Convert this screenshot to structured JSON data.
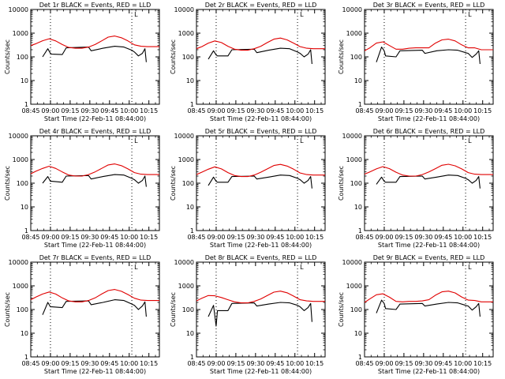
{
  "common": {
    "xlabel": "Start Time (22-Feb-11 08:44:00)",
    "ylabel": "Counts/sec",
    "ytick_labels": [
      "1",
      "10",
      "100",
      "1000",
      "10000"
    ],
    "xtick_labels": [
      "08:45",
      "09:00",
      "09:15",
      "09:30",
      "09:45",
      "10:00",
      "10:15"
    ],
    "x_unit": "minutes after 08:44:00",
    "xtick_values": [
      1,
      16,
      31,
      46,
      61,
      76,
      91
    ],
    "xlim": [
      1,
      99
    ],
    "ylim": [
      1,
      10000
    ],
    "yscale": "log",
    "grid": false,
    "marker_lines_x": [
      16,
      78
    ],
    "marker_glyph": "L",
    "colors": {
      "events": "#000000",
      "lld": "#e00000",
      "axes": "#000000",
      "background": "#ffffff"
    }
  },
  "chart_data": [
    {
      "type": "line",
      "title": "Det 1r BLACK = Events, RED = LLD",
      "series": [
        {
          "name": "Events",
          "color": "#000000",
          "x": [
            10,
            14,
            16,
            17,
            25,
            28,
            45,
            47,
            56,
            65,
            72,
            78,
            80,
            83,
            86,
            88,
            89
          ],
          "y": [
            100,
            220,
            140,
            130,
            125,
            240,
            260,
            180,
            230,
            280,
            260,
            190,
            160,
            110,
            140,
            220,
            60
          ]
        },
        {
          "name": "LLD",
          "color": "#e00000",
          "x": [
            1,
            5,
            10,
            15,
            20,
            25,
            30,
            35,
            40,
            45,
            50,
            55,
            60,
            65,
            70,
            75,
            80,
            85,
            90,
            95,
            99
          ],
          "y": [
            300,
            360,
            480,
            580,
            470,
            330,
            250,
            230,
            230,
            260,
            330,
            470,
            680,
            760,
            640,
            470,
            320,
            280,
            270,
            270,
            270
          ]
        }
      ]
    },
    {
      "type": "line",
      "title": "Det 2r BLACK = Events, RED = LLD",
      "series": [
        {
          "name": "Events",
          "color": "#000000",
          "x": [
            10,
            14,
            16,
            17,
            25,
            28,
            45,
            47,
            56,
            65,
            72,
            78,
            80,
            83,
            86,
            88,
            89
          ],
          "y": [
            80,
            180,
            120,
            110,
            110,
            200,
            210,
            150,
            190,
            230,
            220,
            160,
            140,
            100,
            130,
            200,
            50
          ]
        },
        {
          "name": "LLD",
          "color": "#e00000",
          "x": [
            1,
            5,
            10,
            15,
            20,
            25,
            30,
            35,
            40,
            45,
            50,
            55,
            60,
            65,
            70,
            75,
            80,
            85,
            90,
            95,
            99
          ],
          "y": [
            220,
            270,
            380,
            470,
            400,
            280,
            210,
            190,
            190,
            220,
            280,
            400,
            560,
            620,
            520,
            380,
            270,
            230,
            220,
            220,
            220
          ]
        }
      ]
    },
    {
      "type": "line",
      "title": "Det 3r BLACK = Events, RED = LLD",
      "series": [
        {
          "name": "Events",
          "color": "#000000",
          "x": [
            10,
            14,
            16,
            17,
            25,
            28,
            45,
            47,
            56,
            65,
            72,
            78,
            80,
            83,
            86,
            88,
            89
          ],
          "y": [
            60,
            260,
            180,
            110,
            100,
            180,
            190,
            140,
            180,
            200,
            190,
            150,
            140,
            95,
            130,
            180,
            50
          ]
        },
        {
          "name": "LLD",
          "color": "#e00000",
          "x": [
            1,
            5,
            10,
            15,
            20,
            25,
            30,
            35,
            40,
            45,
            50,
            55,
            60,
            65,
            70,
            75,
            80,
            85,
            90,
            95,
            99
          ],
          "y": [
            180,
            240,
            380,
            430,
            300,
            210,
            210,
            230,
            240,
            240,
            240,
            380,
            520,
            560,
            470,
            320,
            240,
            240,
            200,
            200,
            200
          ]
        }
      ]
    },
    {
      "type": "line",
      "title": "Det 4r BLACK = Events, RED = LLD",
      "series": [
        {
          "name": "Events",
          "color": "#000000",
          "x": [
            10,
            14,
            16,
            17,
            25,
            28,
            45,
            47,
            56,
            65,
            72,
            78,
            80,
            83,
            86,
            88,
            89
          ],
          "y": [
            100,
            190,
            120,
            120,
            110,
            200,
            210,
            150,
            190,
            230,
            220,
            160,
            140,
            100,
            130,
            200,
            70
          ]
        },
        {
          "name": "LLD",
          "color": "#e00000",
          "x": [
            1,
            5,
            10,
            15,
            20,
            25,
            30,
            35,
            40,
            45,
            50,
            55,
            60,
            65,
            70,
            75,
            80,
            85,
            90,
            95,
            99
          ],
          "y": [
            250,
            320,
            420,
            520,
            420,
            300,
            220,
            200,
            200,
            230,
            300,
            420,
            590,
            650,
            550,
            400,
            280,
            240,
            230,
            230,
            230
          ]
        }
      ]
    },
    {
      "type": "line",
      "title": "Det 5r BLACK = Events, RED = LLD",
      "series": [
        {
          "name": "Events",
          "color": "#000000",
          "x": [
            10,
            14,
            16,
            17,
            25,
            28,
            45,
            47,
            56,
            65,
            72,
            78,
            80,
            83,
            86,
            88,
            89
          ],
          "y": [
            80,
            180,
            120,
            110,
            110,
            190,
            200,
            150,
            180,
            220,
            210,
            160,
            140,
            100,
            130,
            190,
            60
          ]
        },
        {
          "name": "LLD",
          "color": "#e00000",
          "x": [
            1,
            5,
            10,
            15,
            20,
            25,
            30,
            35,
            40,
            45,
            50,
            55,
            60,
            65,
            70,
            75,
            80,
            85,
            90,
            95,
            99
          ],
          "y": [
            230,
            290,
            390,
            490,
            400,
            280,
            210,
            190,
            190,
            220,
            290,
            400,
            560,
            620,
            530,
            390,
            270,
            230,
            220,
            220,
            220
          ]
        }
      ]
    },
    {
      "type": "line",
      "title": "Det 6r BLACK = Events, RED = LLD",
      "series": [
        {
          "name": "Events",
          "color": "#000000",
          "x": [
            10,
            14,
            16,
            17,
            25,
            28,
            45,
            47,
            56,
            65,
            72,
            78,
            80,
            83,
            86,
            88,
            89
          ],
          "y": [
            90,
            180,
            120,
            110,
            110,
            190,
            200,
            150,
            180,
            220,
            210,
            160,
            140,
            100,
            130,
            190,
            60
          ]
        },
        {
          "name": "LLD",
          "color": "#e00000",
          "x": [
            1,
            5,
            10,
            15,
            20,
            25,
            30,
            35,
            40,
            45,
            50,
            55,
            60,
            65,
            70,
            75,
            80,
            85,
            90,
            95,
            99
          ],
          "y": [
            240,
            300,
            400,
            500,
            410,
            290,
            220,
            200,
            200,
            230,
            300,
            410,
            570,
            630,
            540,
            400,
            280,
            240,
            230,
            230,
            230
          ]
        }
      ]
    },
    {
      "type": "line",
      "title": "Det 7r BLACK = Events, RED = LLD",
      "series": [
        {
          "name": "Events",
          "color": "#000000",
          "x": [
            10,
            14,
            16,
            17,
            25,
            28,
            45,
            47,
            56,
            65,
            72,
            78,
            80,
            83,
            86,
            88,
            89
          ],
          "y": [
            60,
            200,
            130,
            130,
            120,
            220,
            230,
            160,
            200,
            260,
            240,
            170,
            150,
            100,
            140,
            210,
            50
          ]
        },
        {
          "name": "LLD",
          "color": "#e00000",
          "x": [
            1,
            5,
            10,
            15,
            20,
            25,
            30,
            35,
            40,
            45,
            50,
            55,
            60,
            65,
            70,
            75,
            80,
            85,
            90,
            95,
            99
          ],
          "y": [
            260,
            340,
            450,
            550,
            450,
            310,
            230,
            210,
            210,
            240,
            310,
            450,
            630,
            700,
            590,
            430,
            300,
            250,
            240,
            240,
            240
          ]
        }
      ]
    },
    {
      "type": "line",
      "title": "Det 8r BLACK = Events, RED = LLD",
      "series": [
        {
          "name": "Events",
          "color": "#000000",
          "x": [
            10,
            14,
            16,
            17,
            25,
            28,
            45,
            47,
            56,
            65,
            72,
            78,
            80,
            83,
            86,
            88,
            89
          ],
          "y": [
            50,
            150,
            20,
            90,
            90,
            180,
            190,
            140,
            170,
            200,
            190,
            150,
            130,
            90,
            120,
            180,
            30
          ]
        },
        {
          "name": "LLD",
          "color": "#e00000",
          "x": [
            1,
            5,
            10,
            15,
            20,
            25,
            30,
            35,
            40,
            45,
            50,
            55,
            60,
            65,
            70,
            75,
            80,
            85,
            90,
            95,
            99
          ],
          "y": [
            230,
            300,
            390,
            380,
            320,
            260,
            210,
            190,
            190,
            220,
            280,
            390,
            540,
            600,
            510,
            370,
            260,
            230,
            220,
            220,
            220
          ]
        }
      ]
    },
    {
      "type": "line",
      "title": "Det 9r BLACK = Events, RED = LLD",
      "series": [
        {
          "name": "Events",
          "color": "#000000",
          "x": [
            10,
            14,
            16,
            17,
            25,
            28,
            45,
            47,
            56,
            65,
            72,
            78,
            80,
            83,
            86,
            88,
            89
          ],
          "y": [
            70,
            250,
            180,
            110,
            100,
            170,
            180,
            140,
            170,
            200,
            190,
            150,
            140,
            95,
            130,
            180,
            50
          ]
        },
        {
          "name": "LLD",
          "color": "#e00000",
          "x": [
            1,
            5,
            10,
            15,
            20,
            25,
            30,
            35,
            40,
            45,
            50,
            55,
            60,
            65,
            70,
            75,
            80,
            85,
            90,
            95,
            99
          ],
          "y": [
            200,
            280,
            420,
            460,
            330,
            220,
            210,
            220,
            220,
            230,
            260,
            400,
            560,
            600,
            500,
            340,
            250,
            240,
            210,
            210,
            210
          ]
        }
      ]
    }
  ]
}
